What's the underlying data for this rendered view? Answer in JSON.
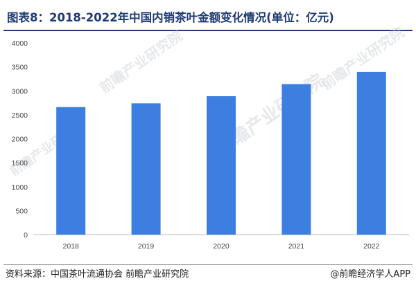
{
  "title": "图表8：2018-2022年中国内销茶叶金额变化情况(单位：亿元)",
  "watermark_text": "前瞻产业研究院",
  "source": "资料来源：中国茶叶流通协会 前瞻产业研究院",
  "brand": "@前瞻经济学人APP",
  "colors": {
    "bar": "#3d7fe0",
    "title": "#1f3a74"
  },
  "chart_data": {
    "type": "bar",
    "title": "图表8：2018-2022年中国内销茶叶金额变化情况(单位：亿元)",
    "xlabel": "",
    "ylabel": "",
    "categories": [
      "2018",
      "2019",
      "2020",
      "2021",
      "2022"
    ],
    "values": [
      2661,
      2739,
      2888,
      3141,
      3395
    ],
    "ylim": [
      0,
      4000
    ],
    "yticks": [
      0,
      500,
      1000,
      1500,
      2000,
      2500,
      3000,
      3500,
      4000
    ],
    "grid": false,
    "legend": "none"
  }
}
